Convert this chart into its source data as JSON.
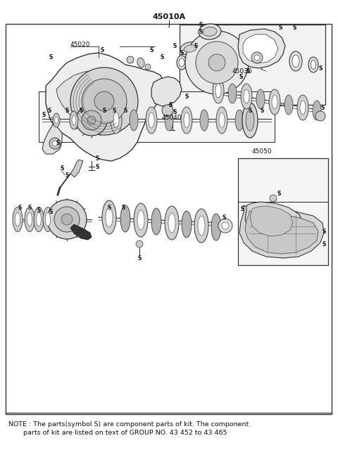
{
  "title": "45010A",
  "title_sub": "J",
  "bg_color": "#ffffff",
  "text_color": "#111111",
  "note_line1": "NOTE : The parts(symbol S) are component parts of kit. The component",
  "note_line2": "       parts of kit are listed on text of GROUP NO. 43 452 to 43 465",
  "note_fontsize": 6.8,
  "border_lw": 1.0
}
